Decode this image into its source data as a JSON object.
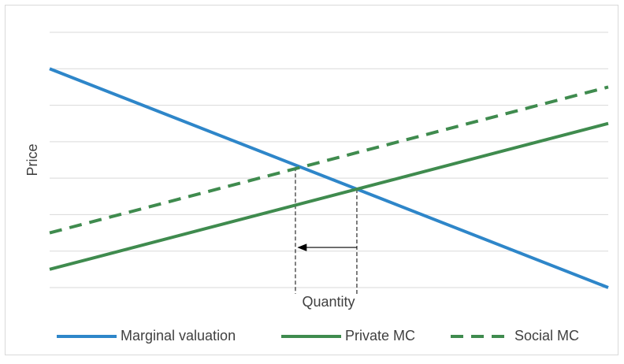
{
  "chart_data": {
    "type": "line",
    "x_label": "Quantity",
    "y_label": "Price",
    "x": [
      0,
      10
    ],
    "series": [
      {
        "name": "Marginal valuation",
        "color": "#2e86c9",
        "dash": false,
        "values": [
          6,
          0
        ]
      },
      {
        "name": "Private MC",
        "color": "#3f8b4e",
        "dash": false,
        "values": [
          0.5,
          4.5
        ]
      },
      {
        "name": "Social MC",
        "color": "#3f8b4e",
        "dash": true,
        "values": [
          1.5,
          5.5
        ]
      }
    ],
    "xlim": [
      0,
      10
    ],
    "ylim": [
      0,
      7
    ],
    "yticks": [
      0,
      1,
      2,
      3,
      4,
      5,
      6,
      7
    ],
    "grid": true,
    "guides": [
      {
        "x": 4.4,
        "y": 3.3
      },
      {
        "x": 5.5,
        "y": 2.7
      }
    ],
    "arrow": {
      "from": 5.5,
      "to": 4.45,
      "y": 1.1
    },
    "legend": "bottom"
  }
}
